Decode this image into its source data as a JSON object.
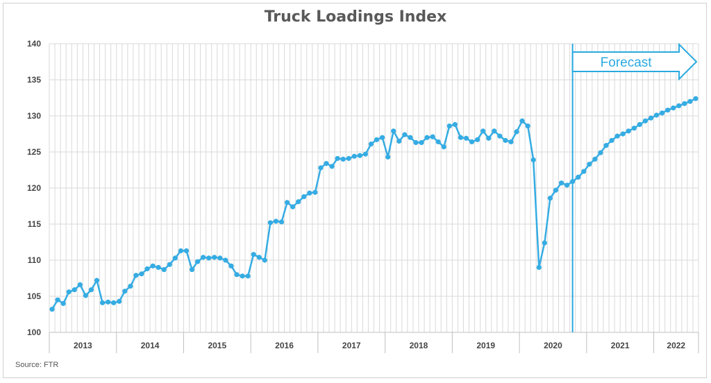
{
  "title": "Truck Loadings Index",
  "source": "Source: FTR",
  "colors": {
    "series": "#35ACE3",
    "forecast_line": "#2aa9e0",
    "grid": "#d9d9d9",
    "axis_text": "#444444"
  },
  "chart_data": {
    "type": "line",
    "title": "Truck Loadings Index",
    "xlabel": "",
    "ylabel": "",
    "ylim": [
      100,
      140
    ],
    "yticks": [
      100,
      105,
      110,
      115,
      120,
      125,
      130,
      135,
      140
    ],
    "grid": "on",
    "year_labels": [
      "2013",
      "2014",
      "2015",
      "2016",
      "2017",
      "2018",
      "2019",
      "2020",
      "2021",
      "2022"
    ],
    "forecast_annotation": {
      "label": "Forecast",
      "start_after_month_index": 93
    },
    "series": [
      {
        "values": [
          103.2,
          104.5,
          104.0,
          105.6,
          105.9,
          106.6,
          105.1,
          105.9,
          107.2,
          104.1,
          104.2,
          104.1,
          104.3,
          105.7,
          106.4,
          107.9,
          108.1,
          108.8,
          109.2,
          109.0,
          108.7,
          109.4,
          110.3,
          111.3,
          111.3,
          108.7,
          109.8,
          110.4,
          110.3,
          110.4,
          110.3,
          110.0,
          109.2,
          108.0,
          107.8,
          107.8,
          110.8,
          110.4,
          110.0,
          115.2,
          115.4,
          115.3,
          118.0,
          117.4,
          118.1,
          118.8,
          119.3,
          119.4,
          122.8,
          123.4,
          123.0,
          124.1,
          124.0,
          124.1,
          124.4,
          124.5,
          124.7,
          126.1,
          126.7,
          127.0,
          124.3,
          127.9,
          126.5,
          127.4,
          127.0,
          126.3,
          126.3,
          127.0,
          127.1,
          126.4,
          125.7,
          128.6,
          128.8,
          127.0,
          126.9,
          126.4,
          126.7,
          127.9,
          126.9,
          127.9,
          127.2,
          126.6,
          126.4,
          127.8,
          129.3,
          128.6,
          123.9,
          109.0,
          112.4,
          118.6,
          119.7,
          120.7,
          120.4,
          120.9,
          121.5,
          122.3,
          123.3,
          124.0,
          124.9,
          125.9,
          126.6,
          127.2,
          127.5,
          127.9,
          128.3,
          128.8,
          129.3,
          129.7,
          130.1,
          130.4,
          130.8,
          131.1,
          131.4,
          131.7,
          132.0,
          132.4
        ]
      }
    ]
  }
}
